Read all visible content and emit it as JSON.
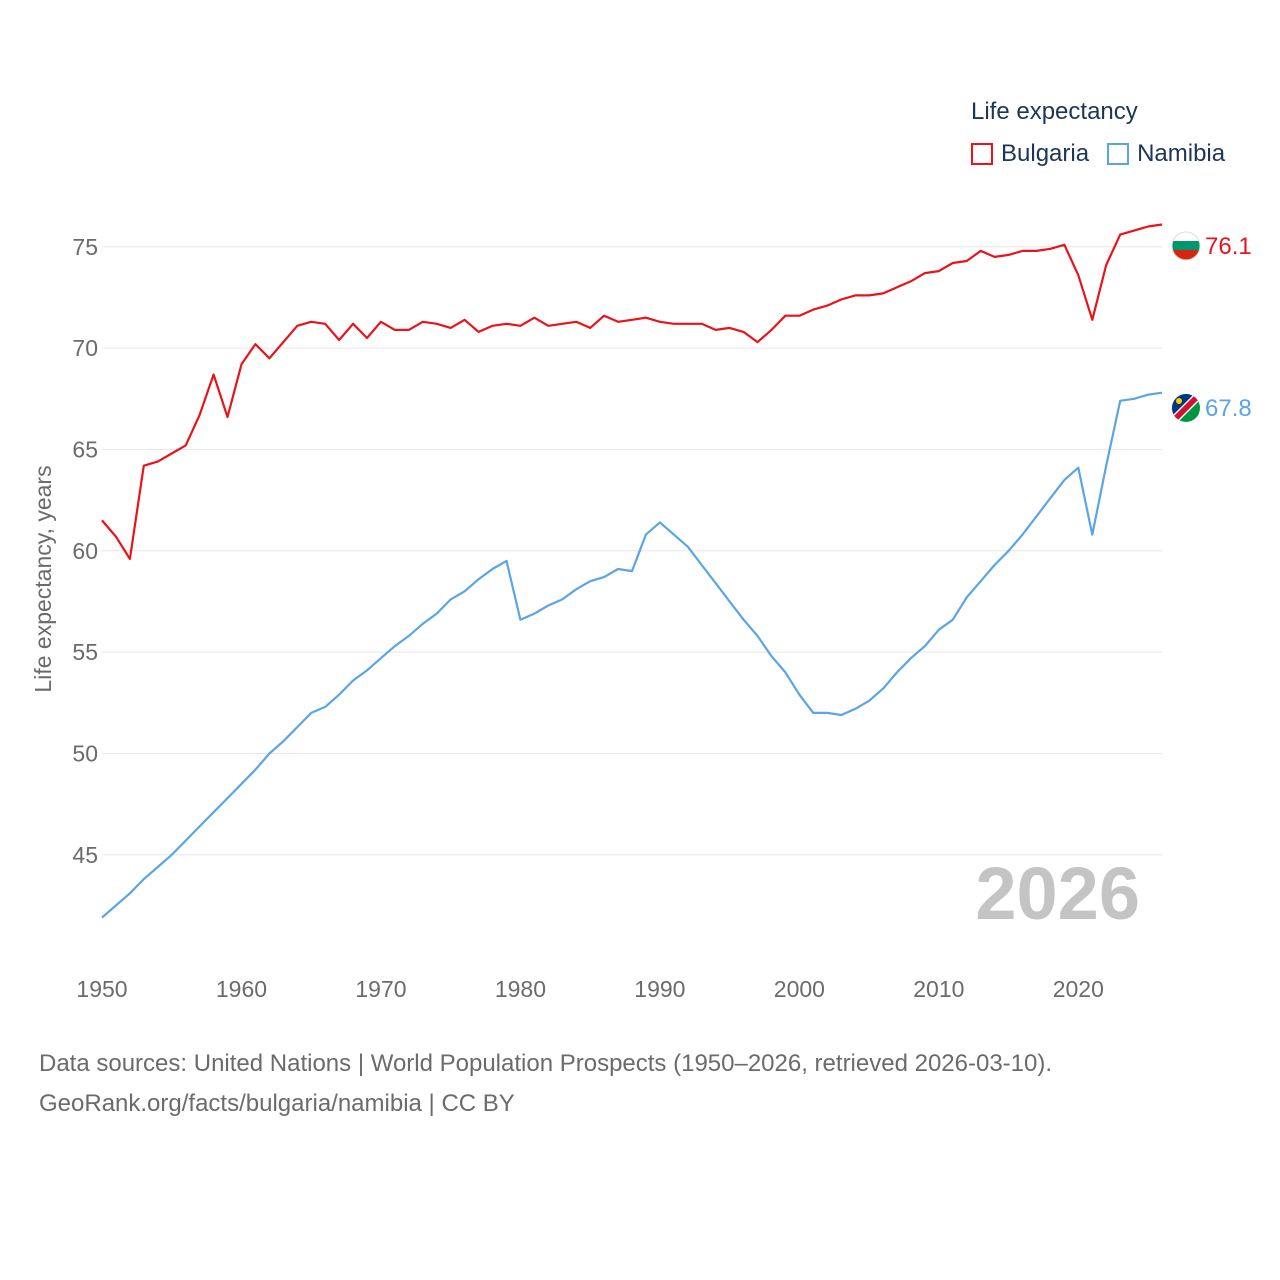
{
  "legend": {
    "title": "Life expectancy",
    "items": [
      {
        "name": "Bulgaria",
        "color": "#e8141a"
      },
      {
        "name": "Namibia",
        "color": "#5ba4e5"
      }
    ]
  },
  "footer": {
    "line1": "Data sources: United Nations | World Population Prospects (1950–2026, retrieved 2026-03-10).",
    "line2": "GeoRank.org/facts/bulgaria/namibia | CC BY"
  },
  "chart_data": {
    "type": "line",
    "ylabel": "Life expectancy, years",
    "xlabel": "",
    "ylim": [
      40.5,
      78
    ],
    "xlim": [
      1950,
      2026
    ],
    "yticks": [
      45,
      50,
      55,
      60,
      65,
      70,
      75
    ],
    "xticks": [
      1950,
      1960,
      1970,
      1980,
      1990,
      2000,
      2010,
      2020
    ],
    "year_watermark": "2026",
    "series": [
      {
        "name": "Bulgaria",
        "color": "#e8141a",
        "end_label": "76.1",
        "icon": "bulgaria-flag-icon",
        "x": [
          1950,
          1951,
          1952,
          1953,
          1954,
          1955,
          1956,
          1957,
          1958,
          1959,
          1960,
          1961,
          1962,
          1963,
          1964,
          1965,
          1966,
          1967,
          1968,
          1969,
          1970,
          1971,
          1972,
          1973,
          1974,
          1975,
          1976,
          1977,
          1978,
          1979,
          1980,
          1981,
          1982,
          1983,
          1984,
          1985,
          1986,
          1987,
          1988,
          1989,
          1990,
          1991,
          1992,
          1993,
          1994,
          1995,
          1996,
          1997,
          1998,
          1999,
          2000,
          2001,
          2002,
          2003,
          2004,
          2005,
          2006,
          2007,
          2008,
          2009,
          2010,
          2011,
          2012,
          2013,
          2014,
          2015,
          2016,
          2017,
          2018,
          2019,
          2020,
          2021,
          2022,
          2023,
          2024,
          2025,
          2026
        ],
        "values": [
          61.5,
          60.7,
          59.6,
          64.2,
          64.4,
          64.8,
          65.2,
          66.7,
          68.7,
          66.6,
          69.2,
          70.2,
          69.5,
          70.3,
          71.1,
          71.3,
          71.2,
          70.4,
          71.2,
          70.5,
          71.3,
          70.9,
          70.9,
          71.3,
          71.2,
          71.0,
          71.4,
          70.8,
          71.1,
          71.2,
          71.1,
          71.5,
          71.1,
          71.2,
          71.3,
          71.0,
          71.6,
          71.3,
          71.4,
          71.5,
          71.3,
          71.2,
          71.2,
          71.2,
          70.9,
          71.0,
          70.8,
          70.3,
          70.9,
          71.6,
          71.6,
          71.9,
          72.1,
          72.4,
          72.6,
          72.6,
          72.7,
          73.0,
          73.3,
          73.7,
          73.8,
          74.2,
          74.3,
          74.8,
          74.5,
          74.6,
          74.8,
          74.8,
          74.9,
          75.1,
          73.6,
          71.4,
          74.1,
          75.6,
          75.8,
          76.0,
          76.1
        ]
      },
      {
        "name": "Namibia",
        "color": "#5ba4e5",
        "end_label": "67.8",
        "icon": "namibia-flag-icon",
        "x": [
          1950,
          1951,
          1952,
          1953,
          1954,
          1955,
          1956,
          1957,
          1958,
          1959,
          1960,
          1961,
          1962,
          1963,
          1964,
          1965,
          1966,
          1967,
          1968,
          1969,
          1970,
          1971,
          1972,
          1973,
          1974,
          1975,
          1976,
          1977,
          1978,
          1979,
          1980,
          1981,
          1982,
          1983,
          1984,
          1985,
          1986,
          1987,
          1988,
          1989,
          1990,
          1991,
          1992,
          1993,
          1994,
          1995,
          1996,
          1997,
          1998,
          1999,
          2000,
          2001,
          2002,
          2003,
          2004,
          2005,
          2006,
          2007,
          2008,
          2009,
          2010,
          2011,
          2012,
          2013,
          2014,
          2015,
          2016,
          2017,
          2018,
          2019,
          2020,
          2021,
          2022,
          2023,
          2024,
          2025,
          2026
        ],
        "values": [
          41.9,
          42.5,
          43.1,
          43.8,
          44.4,
          45.0,
          45.7,
          46.4,
          47.1,
          47.8,
          48.5,
          49.2,
          50.0,
          50.6,
          51.3,
          52.0,
          52.3,
          52.9,
          53.6,
          54.1,
          54.7,
          55.3,
          55.8,
          56.4,
          56.9,
          57.6,
          58.0,
          58.6,
          59.1,
          59.5,
          56.6,
          56.9,
          57.3,
          57.6,
          58.1,
          58.5,
          58.7,
          59.1,
          59.0,
          60.8,
          61.4,
          60.8,
          60.2,
          59.3,
          58.4,
          57.5,
          56.6,
          55.8,
          54.8,
          54.0,
          52.9,
          52.0,
          52.0,
          51.9,
          52.2,
          52.6,
          53.2,
          54.0,
          54.7,
          55.3,
          56.1,
          56.6,
          57.7,
          58.5,
          59.3,
          60.0,
          60.8,
          61.7,
          62.6,
          63.5,
          64.1,
          60.8,
          64.2,
          67.4,
          67.5,
          67.7,
          67.8
        ]
      }
    ]
  }
}
